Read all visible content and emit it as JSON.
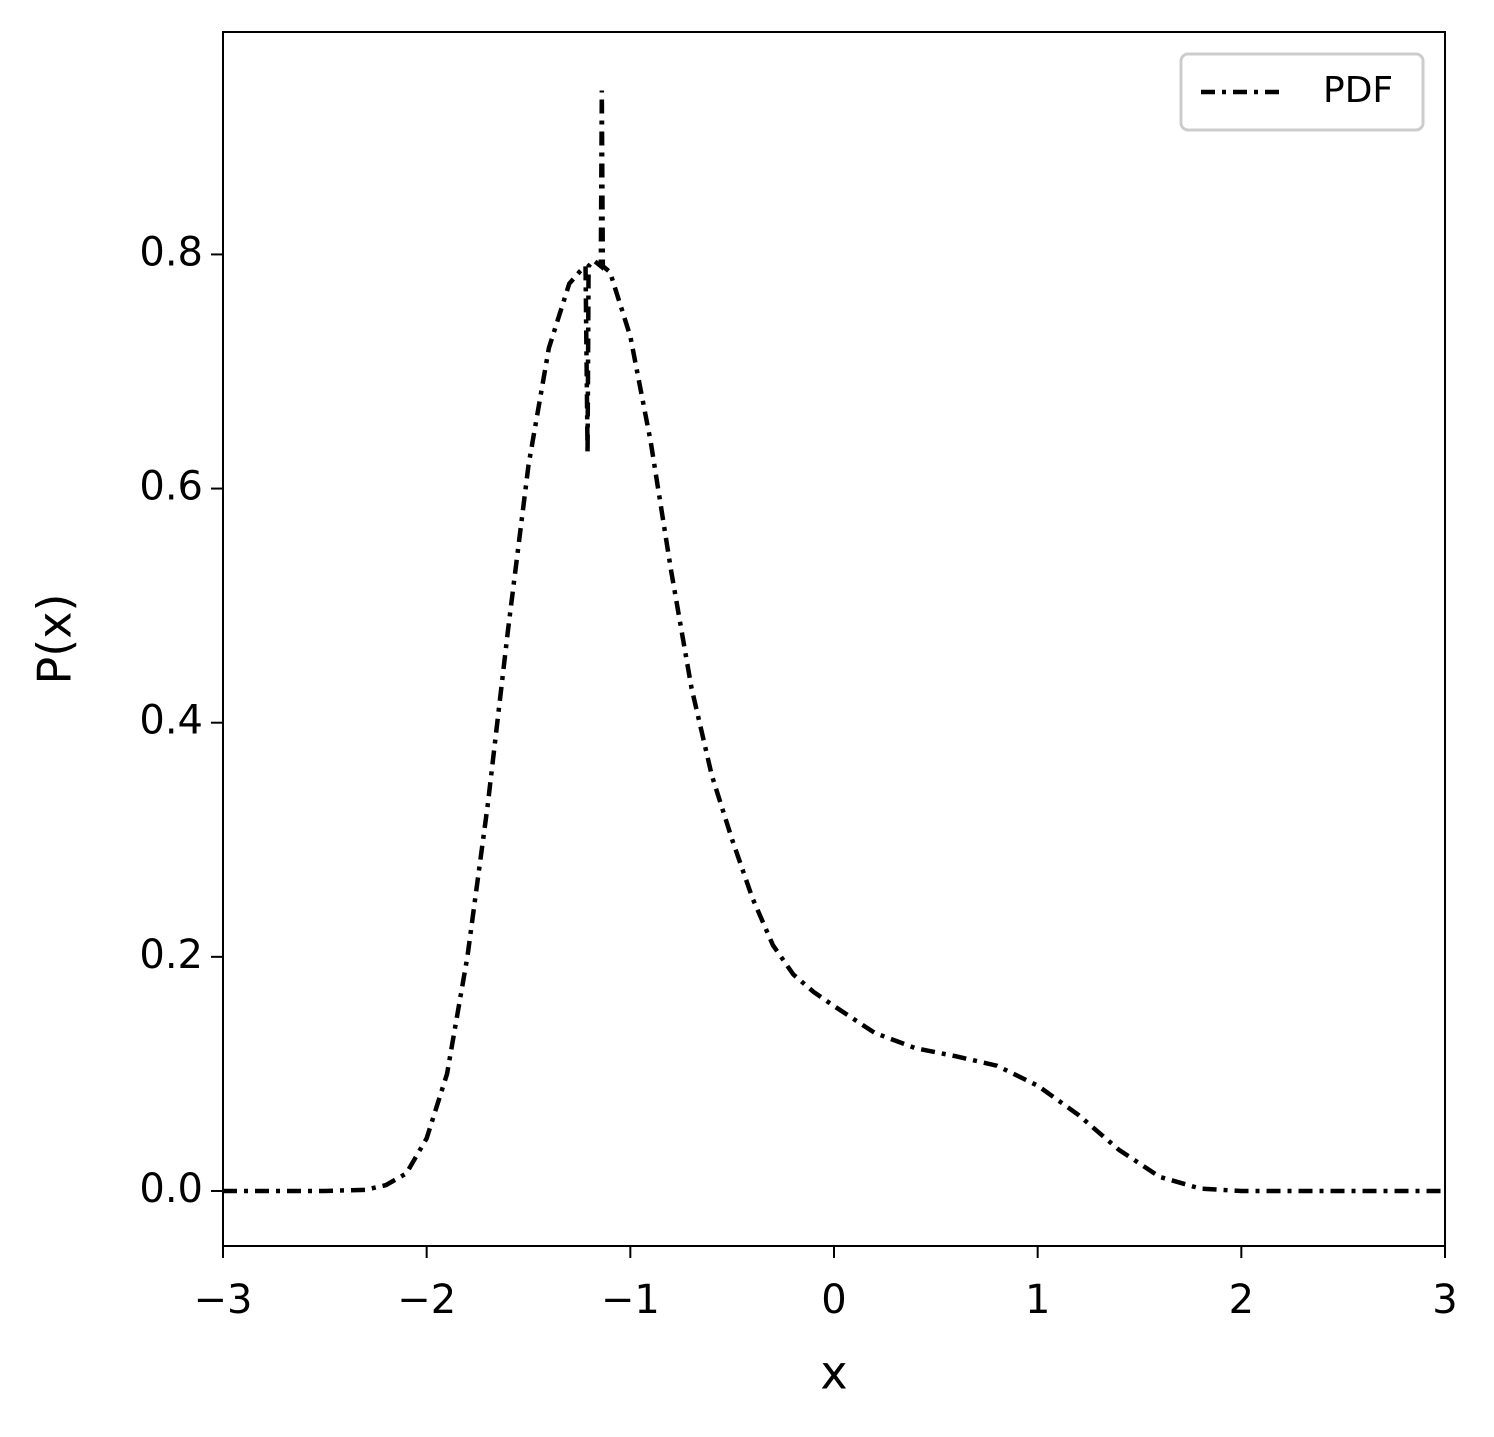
{
  "chart_data": {
    "type": "line",
    "xlabel": "x",
    "ylabel": "P(x)",
    "x": [
      -3,
      -2.5,
      -2.3,
      -2.2,
      -2.1,
      -2.0,
      -1.9,
      -1.8,
      -1.7,
      -1.6,
      -1.5,
      -1.4,
      -1.3,
      -1.25,
      -1.22,
      -1.21,
      -1.205,
      -1.18,
      -1.145,
      -1.14,
      -1.135,
      -1.1,
      -1.0,
      -0.9,
      -0.8,
      -0.7,
      -0.6,
      -0.5,
      -0.4,
      -0.3,
      -0.2,
      -0.1,
      0,
      0.2,
      0.4,
      0.6,
      0.8,
      1.0,
      1.2,
      1.4,
      1.6,
      1.8,
      2.0,
      2.5,
      3
    ],
    "series": [
      {
        "name": "PDF",
        "color": "#000000",
        "values": [
          0,
          0,
          0.001,
          0.005,
          0.015,
          0.045,
          0.1,
          0.2,
          0.33,
          0.48,
          0.62,
          0.72,
          0.775,
          0.785,
          0.79,
          0.63,
          0.79,
          0.795,
          0.79,
          0.94,
          0.79,
          0.785,
          0.73,
          0.64,
          0.53,
          0.43,
          0.355,
          0.3,
          0.25,
          0.21,
          0.185,
          0.17,
          0.158,
          0.135,
          0.122,
          0.115,
          0.107,
          0.09,
          0.065,
          0.035,
          0.012,
          0.002,
          0,
          0,
          0
        ]
      }
    ],
    "xlim": [
      -3,
      3
    ],
    "xticks": [
      {
        "value": -3,
        "label": "−3"
      },
      {
        "value": -2,
        "label": "−2"
      },
      {
        "value": -1,
        "label": "−1"
      },
      0,
      1,
      2,
      3
    ],
    "ylim": [
      -0.047,
      0.99
    ],
    "yticks": [
      {
        "value": 0,
        "label": "0.0"
      },
      0.2,
      0.4,
      0.6,
      0.8
    ],
    "legend": "upper right",
    "grid": false
  }
}
